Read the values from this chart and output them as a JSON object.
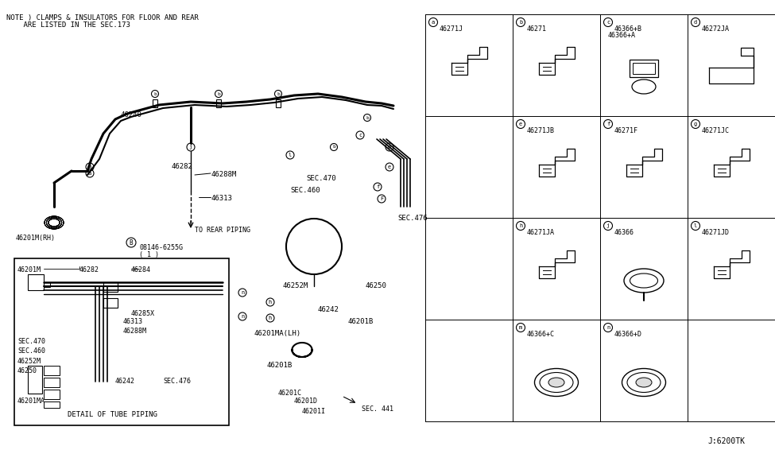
{
  "bg_color": "#ffffff",
  "line_color": "#000000",
  "fig_width": 9.75,
  "fig_height": 5.66,
  "note_text": "NOTE ) CLAMPS & INSULATORS FOR FLOOR AND REAR\n    ARE LISTED IN THE SEC.173",
  "watermark": "J:6200TK",
  "grid_labels": [
    {
      "cell": "a",
      "part": "46271J",
      "col": 0,
      "row": 0
    },
    {
      "cell": "b",
      "part": "46271",
      "col": 1,
      "row": 0
    },
    {
      "cell": "c",
      "part": "46366+B\n46366+A",
      "col": 2,
      "row": 0
    },
    {
      "cell": "d",
      "part": "46272JA",
      "col": 3,
      "row": 0
    },
    {
      "cell": "e",
      "part": "46271JB",
      "col": 1,
      "row": 1
    },
    {
      "cell": "f",
      "part": "46271F",
      "col": 2,
      "row": 1
    },
    {
      "cell": "g",
      "part": "46271JC",
      "col": 3,
      "row": 1
    },
    {
      "cell": "h",
      "part": "46271JA",
      "col": 1,
      "row": 2
    },
    {
      "cell": "j",
      "part": "46366",
      "col": 2,
      "row": 2
    },
    {
      "cell": "l",
      "part": "46271JD",
      "col": 3,
      "row": 2
    },
    {
      "cell": "m",
      "part": "46366+C",
      "col": 1,
      "row": 3
    },
    {
      "cell": "n",
      "part": "46366+D",
      "col": 2,
      "row": 3
    }
  ],
  "main_labels": [
    "46240",
    "46282",
    "46288M",
    "46313",
    "46201M(RH)",
    "TO REAR PIPING",
    "46252M",
    "46250",
    "46242",
    "46201MA(LH)",
    "46201B",
    "46201B",
    "46201C",
    "46201D",
    "46201I",
    "SEC.441",
    "SEC.470",
    "SEC.460",
    "SEC.476",
    "46284",
    "46285X"
  ],
  "detail_labels": [
    "46201M",
    "46240",
    "46282",
    "46284",
    "SEC.470",
    "SEC.460",
    "46252M",
    "46250",
    "46313",
    "46288M",
    "46285X",
    "46242",
    "46201MA",
    "SEC.476",
    "DETAIL OF TUBE PIPING"
  ]
}
